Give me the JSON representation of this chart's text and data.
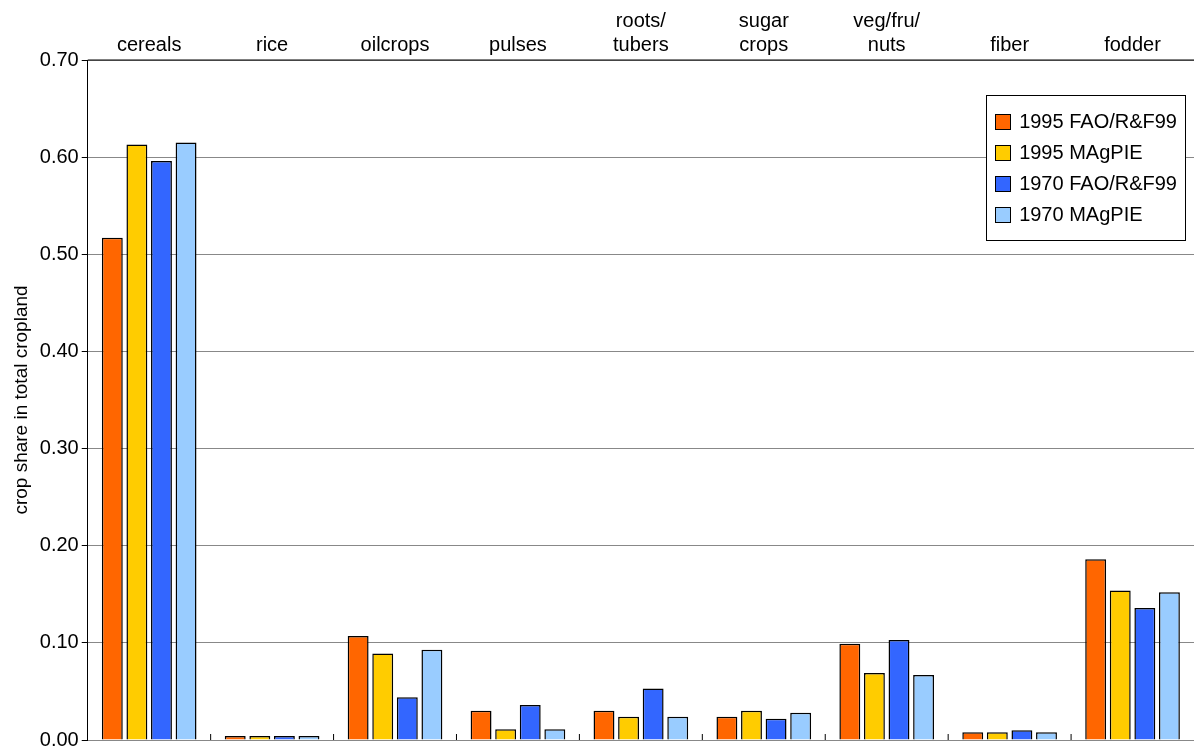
{
  "chart_data": {
    "type": "bar",
    "ylabel": "crop share in total cropland",
    "categories": [
      "cereals",
      "rice",
      "oilcrops",
      "pulses",
      "roots/\ntubers",
      "sugar\ncrops",
      "veg/fru/\nnuts",
      "fiber",
      "fodder"
    ],
    "series": [
      {
        "name": "1995 FAO/R&F99",
        "color": "#ff6600",
        "values": [
          0.517,
          0.004,
          0.107,
          0.03,
          0.03,
          0.024,
          0.099,
          0.008,
          0.186
        ]
      },
      {
        "name": "1995 MAgPIE",
        "color": "#ffcc00",
        "values": [
          0.613,
          0.004,
          0.089,
          0.011,
          0.024,
          0.03,
          0.069,
          0.008,
          0.154
        ]
      },
      {
        "name": "1970 FAO/R&F99",
        "color": "#3366ff",
        "values": [
          0.596,
          0.004,
          0.044,
          0.036,
          0.053,
          0.022,
          0.103,
          0.01,
          0.136
        ]
      },
      {
        "name": "1970 MAgPIE",
        "color": "#99ccff",
        "values": [
          0.615,
          0.004,
          0.093,
          0.011,
          0.024,
          0.028,
          0.067,
          0.008,
          0.152
        ]
      }
    ],
    "ylim": [
      0,
      0.7
    ],
    "yticks": [
      {
        "value": 0,
        "label": "0.00"
      },
      {
        "value": 0.1,
        "label": "0.10"
      },
      {
        "value": 0.2,
        "label": "0.20"
      },
      {
        "value": 0.3,
        "label": "0.30"
      },
      {
        "value": 0.4,
        "label": "0.40"
      },
      {
        "value": 0.5,
        "label": "0.50"
      },
      {
        "value": 0.6,
        "label": "0.60"
      },
      {
        "value": 0.7,
        "label": "0.70"
      }
    ],
    "grid": "y",
    "legend": "top right"
  }
}
